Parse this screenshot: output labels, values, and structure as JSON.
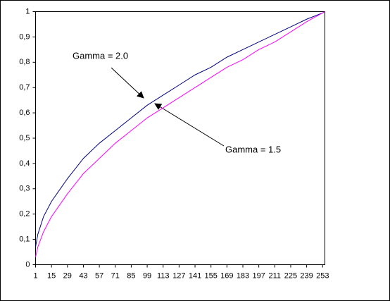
{
  "chart_data": {
    "type": "line",
    "x": [
      1,
      3,
      8,
      15,
      29,
      43,
      57,
      71,
      85,
      99,
      113,
      127,
      141,
      155,
      169,
      183,
      197,
      211,
      225,
      239,
      253,
      255
    ],
    "series": [
      {
        "color": "#000080",
        "values": [
          0.07,
          0.12,
          0.19,
          0.25,
          0.34,
          0.42,
          0.48,
          0.53,
          0.58,
          0.63,
          0.67,
          0.71,
          0.75,
          0.78,
          0.82,
          0.85,
          0.88,
          0.91,
          0.94,
          0.97,
          0.995,
          1
        ]
      },
      {
        "color": "#ff00ff",
        "values": [
          0.03,
          0.07,
          0.13,
          0.19,
          0.28,
          0.36,
          0.42,
          0.48,
          0.53,
          0.58,
          0.62,
          0.66,
          0.7,
          0.74,
          0.78,
          0.81,
          0.85,
          0.88,
          0.92,
          0.96,
          0.995,
          1
        ]
      }
    ],
    "xlim": [
      1,
      255
    ],
    "xticks": [
      1,
      15,
      29,
      43,
      57,
      71,
      85,
      99,
      113,
      127,
      141,
      155,
      169,
      183,
      197,
      211,
      225,
      239,
      253
    ],
    "ylim": [
      0,
      1
    ],
    "yticks": [
      0,
      {
        "value": 0.1,
        "label": "0,1"
      },
      {
        "value": 0.2,
        "label": "0,2"
      },
      {
        "value": 0.3,
        "label": "0,3"
      },
      {
        "value": 0.4,
        "label": "0,4"
      },
      {
        "value": 0.5,
        "label": "0,5"
      },
      {
        "value": 0.6,
        "label": "0,6"
      },
      {
        "value": 0.7,
        "label": "0,7"
      },
      {
        "value": 0.8,
        "label": "0,8"
      },
      {
        "value": 0.9,
        "label": "0,9"
      },
      1
    ],
    "annotations": [
      "Gamma = 2.0",
      "Gamma = 1.5"
    ]
  }
}
